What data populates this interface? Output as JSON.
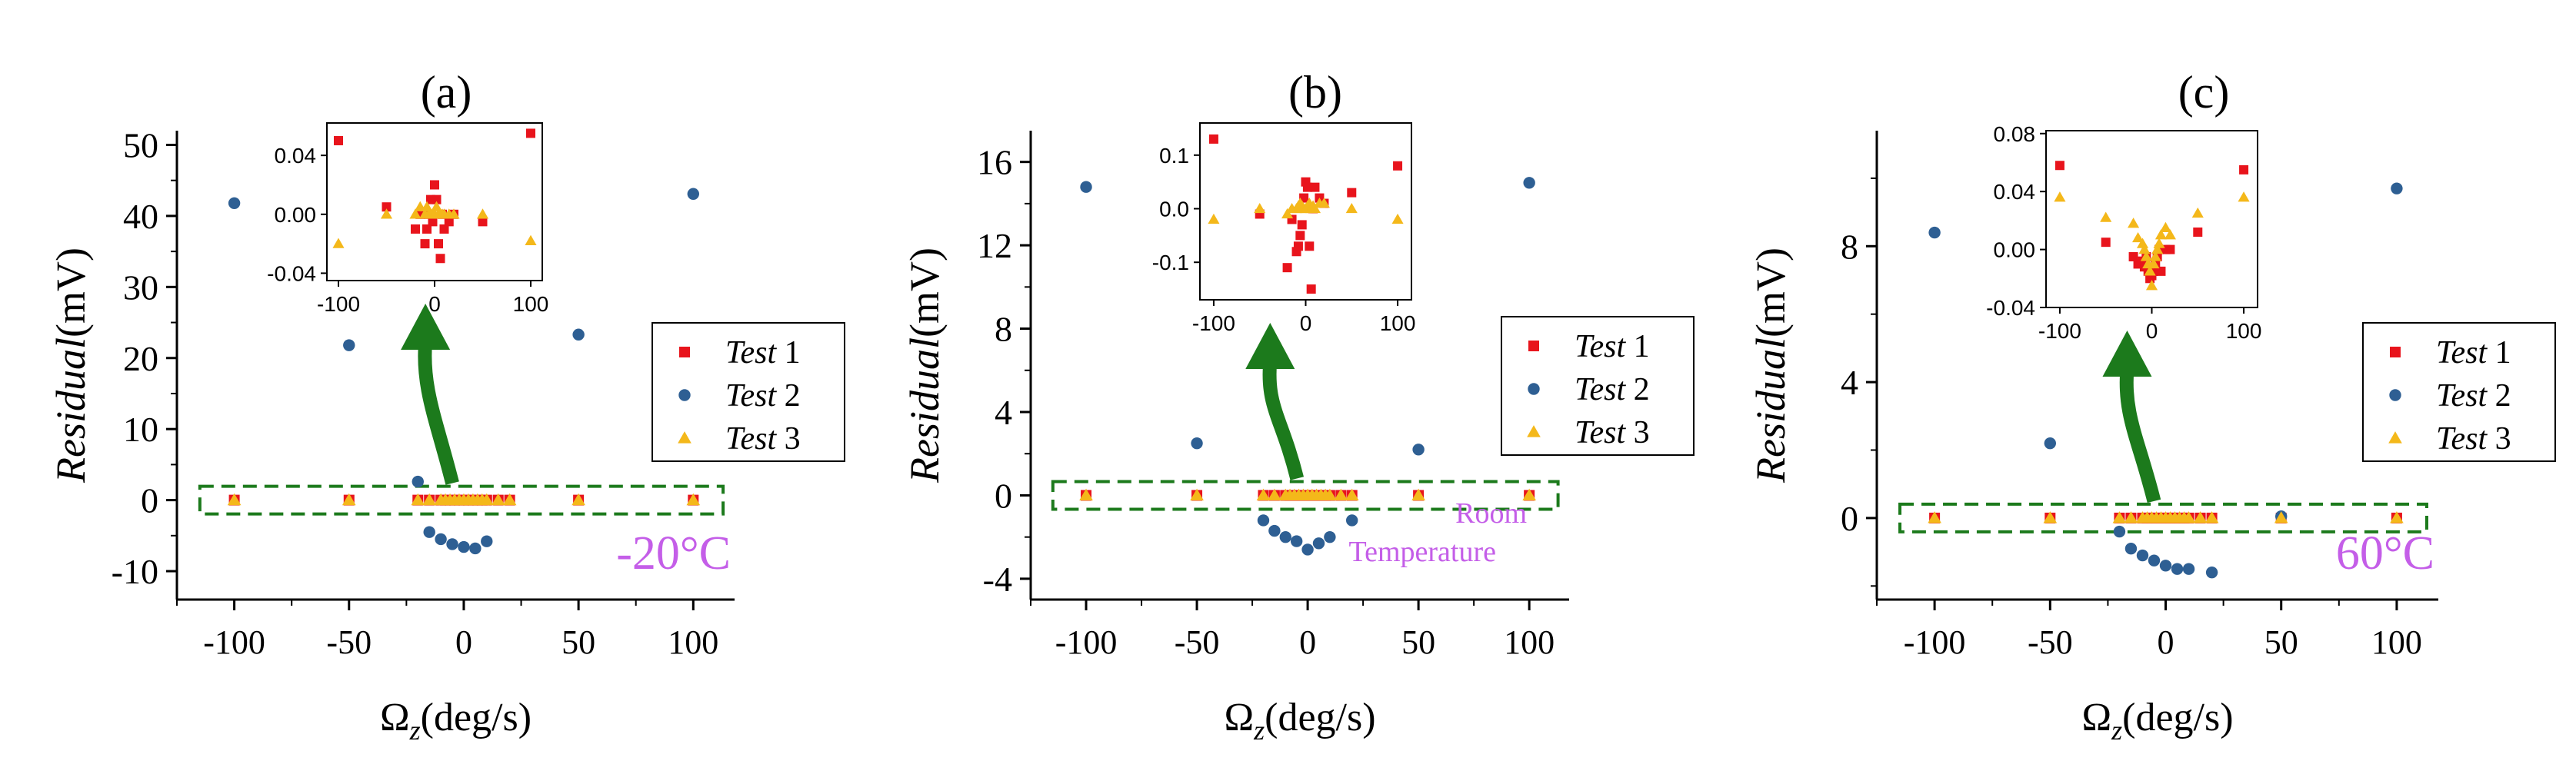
{
  "colors": {
    "test1": "#e8141c",
    "test2": "#2e5f93",
    "test3": "#f4b81a",
    "box": "#1c7a1c",
    "arrow": "#1c7a1c",
    "temp": "#c45ee8",
    "axis": "#000000"
  },
  "chart_data": [
    {
      "type": "scatter",
      "panel_label": "(a)",
      "xlabel_main": "Ω",
      "xlabel_sub": "z",
      "xlabel_rest": "(deg/s)",
      "ylabel_italic": "Residual",
      "ylabel_rest": "(mV)",
      "xlim": [
        -125,
        118
      ],
      "ylim": [
        -14,
        52
      ],
      "xticks": [
        -100,
        -50,
        0,
        50,
        100
      ],
      "xtick_labels": [
        "-100",
        "-50",
        "0",
        "50",
        "100"
      ],
      "yticks": [
        -10,
        0,
        10,
        20,
        30,
        40,
        50
      ],
      "ytick_labels": [
        "-10",
        "0",
        "10",
        "20",
        "30",
        "40",
        "50"
      ],
      "temperature_lines": [
        "-20°C"
      ],
      "legend": [
        {
          "name": "Test",
          "num": "1"
        },
        {
          "name": "Test",
          "num": "2"
        },
        {
          "name": "Test",
          "num": "3"
        }
      ],
      "series": [
        {
          "name": "Test 1",
          "x": [
            -100,
            -50,
            -20,
            -15,
            -10,
            -8,
            -6,
            -4,
            -2,
            0,
            2,
            4,
            6,
            8,
            10,
            15,
            20,
            50,
            100
          ],
          "y": [
            0.05,
            0.005,
            -0.01,
            0.0,
            -0.02,
            -0.01,
            0.0,
            0.01,
            -0.005,
            0.02,
            0.01,
            -0.02,
            -0.03,
            0.0,
            -0.01,
            -0.005,
            0.0,
            -0.005,
            0.055
          ]
        },
        {
          "name": "Test 2",
          "x": [
            -100,
            -50,
            -20,
            -15,
            -10,
            -5,
            0,
            5,
            10,
            50,
            100
          ],
          "y": [
            41.8,
            21.8,
            2.6,
            -4.5,
            -5.5,
            -6.2,
            -6.6,
            -6.8,
            -5.8,
            23.3,
            43.1
          ]
        },
        {
          "name": "Test 3",
          "x": [
            -100,
            -50,
            -20,
            -15,
            -10,
            -8,
            -6,
            -4,
            -2,
            0,
            2,
            4,
            6,
            8,
            10,
            15,
            20,
            50,
            100
          ],
          "y": [
            -0.02,
            0.0,
            0.0,
            0.005,
            0.0,
            0.005,
            0.0,
            0.0,
            0.0,
            0.0,
            0.005,
            0.0,
            0.0,
            0.0,
            0.0,
            0.0,
            0.0,
            0.0,
            -0.018
          ]
        }
      ],
      "inset": {
        "xlim": [
          -112,
          112
        ],
        "ylim": [
          -0.045,
          0.062
        ],
        "xticks": [
          -100,
          0,
          100
        ],
        "xtick_labels": [
          "-100",
          "0",
          "100"
        ],
        "yticks": [
          -0.04,
          0.0,
          0.04
        ],
        "ytick_labels": [
          "-0.04",
          "0.00",
          "0.04"
        ]
      }
    },
    {
      "type": "scatter",
      "panel_label": "(b)",
      "xlabel_main": "Ω",
      "xlabel_sub": "z",
      "xlabel_rest": "(deg/s)",
      "ylabel_italic": "Residual",
      "ylabel_rest": "(mV)",
      "xlim": [
        -125,
        118
      ],
      "ylim": [
        -5,
        17.5
      ],
      "xticks": [
        -100,
        -50,
        0,
        50,
        100
      ],
      "xtick_labels": [
        "-100",
        "-50",
        "0",
        "50",
        "100"
      ],
      "yticks": [
        -4,
        0,
        4,
        8,
        12,
        16
      ],
      "ytick_labels": [
        "-4",
        "0",
        "4",
        "8",
        "12",
        "16"
      ],
      "temperature_lines": [
        "Room",
        "Temperature"
      ],
      "legend": [
        {
          "name": "Test",
          "num": "1"
        },
        {
          "name": "Test",
          "num": "2"
        },
        {
          "name": "Test",
          "num": "3"
        }
      ],
      "series": [
        {
          "name": "Test 1",
          "x": [
            -100,
            -50,
            -20,
            -15,
            -10,
            -8,
            -6,
            -4,
            -2,
            0,
            2,
            4,
            6,
            8,
            10,
            15,
            20,
            50,
            100
          ],
          "y": [
            0.13,
            -0.01,
            -0.11,
            -0.02,
            -0.08,
            -0.07,
            -0.05,
            -0.03,
            0.02,
            0.05,
            0.04,
            -0.07,
            -0.15,
            0.0,
            0.04,
            0.02,
            0.01,
            0.03,
            0.08
          ]
        },
        {
          "name": "Test 2",
          "x": [
            -100,
            -50,
            -20,
            -15,
            -10,
            -5,
            0,
            5,
            10,
            20,
            50,
            100
          ],
          "y": [
            14.8,
            2.5,
            -1.2,
            -1.7,
            -2.0,
            -2.2,
            -2.6,
            -2.3,
            -2.0,
            -1.2,
            2.2,
            15.0
          ]
        },
        {
          "name": "Test 3",
          "x": [
            -100,
            -50,
            -20,
            -15,
            -10,
            -8,
            -6,
            -4,
            -2,
            0,
            2,
            4,
            6,
            8,
            10,
            15,
            20,
            50,
            100
          ],
          "y": [
            -0.02,
            0.0,
            -0.01,
            0.0,
            0.0,
            0.005,
            0.01,
            0.005,
            0.0,
            0.0,
            0.005,
            0.01,
            0.0,
            0.005,
            0.0,
            0.01,
            0.01,
            0.0,
            -0.02
          ]
        }
      ],
      "inset": {
        "xlim": [
          -115,
          115
        ],
        "ylim": [
          -0.17,
          0.16
        ],
        "xticks": [
          -100,
          0,
          100
        ],
        "xtick_labels": [
          "-100",
          "0",
          "100"
        ],
        "yticks": [
          -0.1,
          0.0,
          0.1
        ],
        "ytick_labels": [
          "-0.1",
          "0.0",
          "0.1"
        ]
      }
    },
    {
      "type": "scatter",
      "panel_label": "(c)",
      "xlabel_main": "Ω",
      "xlabel_sub": "z",
      "xlabel_rest": "(deg/s)",
      "ylabel_italic": "Residual",
      "ylabel_rest": "(mV)",
      "xlim": [
        -125,
        118
      ],
      "ylim": [
        -2.4,
        11.4
      ],
      "xticks": [
        -100,
        -50,
        0,
        50,
        100
      ],
      "xtick_labels": [
        "-100",
        "-50",
        "0",
        "50",
        "100"
      ],
      "yticks": [
        0,
        4,
        8
      ],
      "ytick_labels": [
        "0",
        "4",
        "8"
      ],
      "temperature_lines": [
        "60°C"
      ],
      "legend": [
        {
          "name": "Test",
          "num": "1"
        },
        {
          "name": "Test",
          "num": "2"
        },
        {
          "name": "Test",
          "num": "3"
        }
      ],
      "series": [
        {
          "name": "Test 1",
          "x": [
            -100,
            -50,
            -20,
            -15,
            -10,
            -8,
            -6,
            -4,
            -2,
            0,
            2,
            4,
            6,
            8,
            10,
            15,
            20,
            50,
            100
          ],
          "y": [
            0.058,
            0.005,
            -0.005,
            -0.01,
            -0.008,
            -0.012,
            -0.005,
            -0.015,
            -0.02,
            -0.018,
            -0.015,
            -0.01,
            -0.005,
            0.0,
            -0.015,
            0.0,
            0.0,
            0.012,
            0.055
          ]
        },
        {
          "name": "Test 2",
          "x": [
            -100,
            -50,
            -20,
            -15,
            -10,
            -5,
            0,
            5,
            10,
            20,
            50,
            100
          ],
          "y": [
            8.4,
            2.2,
            -0.4,
            -0.9,
            -1.1,
            -1.25,
            -1.4,
            -1.5,
            -1.5,
            -1.6,
            0.05,
            9.7
          ]
        },
        {
          "name": "Test 3",
          "x": [
            -100,
            -50,
            -20,
            -15,
            -10,
            -8,
            -6,
            -4,
            -2,
            0,
            2,
            4,
            6,
            8,
            10,
            15,
            20,
            50,
            100
          ],
          "y": [
            0.036,
            0.022,
            0.018,
            0.008,
            0.004,
            0.0,
            -0.005,
            -0.01,
            -0.015,
            -0.025,
            -0.01,
            -0.005,
            0.0,
            0.004,
            0.01,
            0.015,
            0.01,
            0.025,
            0.036
          ]
        }
      ],
      "inset": {
        "xlim": [
          -115,
          115
        ],
        "ylim": [
          -0.04,
          0.082
        ],
        "xticks": [
          -100,
          0,
          100
        ],
        "xtick_labels": [
          "-100",
          "0",
          "100"
        ],
        "yticks": [
          -0.04,
          0.0,
          0.04,
          0.08
        ],
        "ytick_labels": [
          "-0.04",
          "0.00",
          "0.04",
          "0.08"
        ]
      }
    }
  ]
}
